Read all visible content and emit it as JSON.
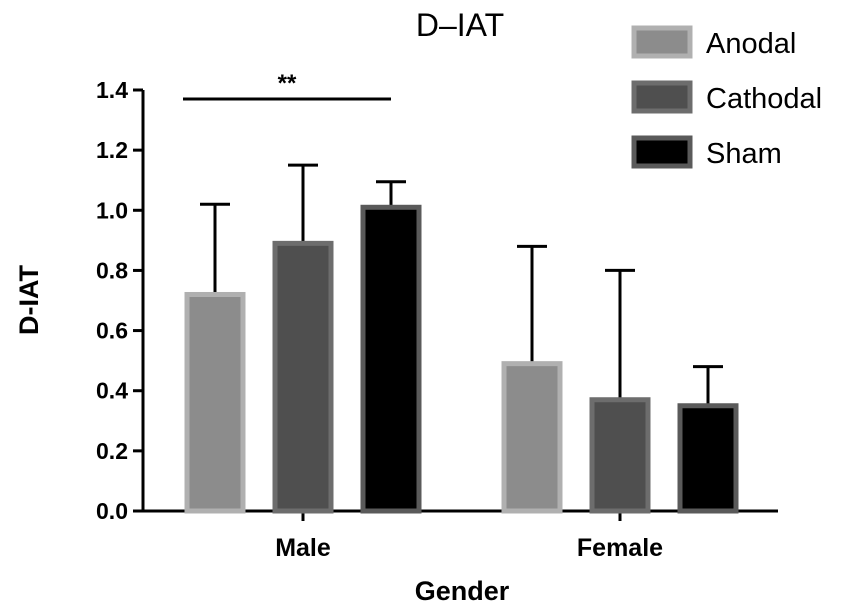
{
  "chart_data": {
    "type": "bar",
    "title": "D–IAT",
    "xlabel": "Gender",
    "ylabel": "D-IAT",
    "ylim": [
      0,
      1.4
    ],
    "yticks": [
      "0.0",
      "0.2",
      "0.4",
      "0.6",
      "0.8",
      "1.0",
      "1.2",
      "1.4"
    ],
    "categories": [
      "Male",
      "Female"
    ],
    "legend_position": "top-right",
    "series": [
      {
        "name": "Anodal",
        "values": [
          0.72,
          0.49
        ],
        "error_upper": [
          0.3,
          0.39
        ],
        "color": "#8c8c8c",
        "stroke": "#b0b0b0"
      },
      {
        "name": "Cathodal",
        "values": [
          0.89,
          0.37
        ],
        "error_upper": [
          0.26,
          0.43
        ],
        "color": "#4f4f4f",
        "stroke": "#6d6d6d"
      },
      {
        "name": "Sham",
        "values": [
          1.01,
          0.35
        ],
        "error_upper": [
          0.085,
          0.13
        ],
        "color": "#000000",
        "stroke": "#5a5a5a"
      }
    ],
    "annotations": [
      {
        "text": "**",
        "category": "Male",
        "from_series": "Anodal",
        "to_series": "Sham",
        "y": 1.38
      }
    ]
  }
}
